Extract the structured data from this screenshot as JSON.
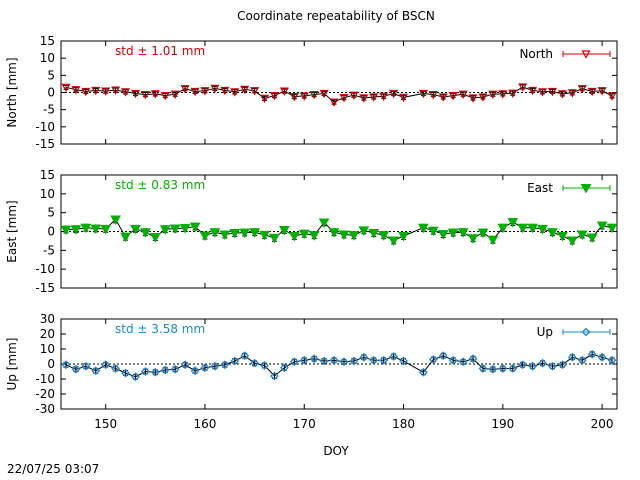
{
  "title": "Coordinate repeatability of BSCN",
  "timestamp": "22/07/25 03:07",
  "chart_data": [
    {
      "type": "line",
      "component": "North",
      "ylabel": "North [mm]",
      "xlim": [
        145.5,
        201.5
      ],
      "ylim": [
        -15,
        15
      ],
      "yticks": [
        15,
        10,
        5,
        0,
        -5,
        -10,
        -15
      ],
      "stat_label": "std ± 1.01 mm",
      "legend": "North",
      "legend_position": "top-right",
      "color": "#cc0000",
      "marker": "triangle-down-open",
      "zero_line": true,
      "error": 0.6,
      "x": [
        146,
        147,
        148,
        149,
        150,
        151,
        152,
        153,
        154,
        155,
        156,
        157,
        158,
        159,
        160,
        161,
        162,
        163,
        164,
        165,
        166,
        167,
        168,
        169,
        170,
        171,
        172,
        173,
        174,
        175,
        176,
        177,
        178,
        179,
        180,
        182,
        183,
        184,
        185,
        186,
        187,
        188,
        189,
        190,
        191,
        192,
        193,
        194,
        195,
        196,
        197,
        198,
        199,
        200,
        201
      ],
      "values": [
        1.5,
        0.8,
        0.3,
        0.6,
        0.4,
        0.7,
        0.2,
        -0.3,
        -0.6,
        -0.4,
        -0.9,
        -0.5,
        1.1,
        0.3,
        0.5,
        1.2,
        0.6,
        0.2,
        0.9,
        0.5,
        -1.7,
        -0.9,
        0.4,
        -1.2,
        -1.0,
        -0.6,
        -0.3,
        -2.8,
        -1.5,
        -0.8,
        -1.6,
        -1.3,
        -1.1,
        -0.3,
        -1.4,
        -0.3,
        -0.6,
        -1.3,
        -0.9,
        -0.5,
        -1.6,
        -1.3,
        -0.5,
        -0.4,
        -0.2,
        1.6,
        0.6,
        0.2,
        0.3,
        -0.4,
        -0.1,
        1.1,
        0.3,
        0.5,
        -1.0
      ]
    },
    {
      "type": "line",
      "component": "East",
      "ylabel": "East [mm]",
      "xlim": [
        145.5,
        201.5
      ],
      "ylim": [
        -15,
        15
      ],
      "yticks": [
        15,
        10,
        5,
        0,
        -5,
        -10,
        -15
      ],
      "stat_label": "std ± 0.83 mm",
      "legend": "East",
      "legend_position": "top-right",
      "color": "#00b000",
      "marker": "triangle-down-filled",
      "zero_line": true,
      "error": 0.9,
      "x": [
        146,
        147,
        148,
        149,
        150,
        151,
        152,
        153,
        154,
        155,
        156,
        157,
        158,
        159,
        160,
        161,
        162,
        163,
        164,
        165,
        166,
        167,
        168,
        169,
        170,
        171,
        172,
        173,
        174,
        175,
        176,
        177,
        178,
        179,
        180,
        182,
        183,
        184,
        185,
        186,
        187,
        188,
        189,
        190,
        191,
        192,
        193,
        194,
        195,
        196,
        197,
        198,
        199,
        200,
        201
      ],
      "values": [
        0.5,
        0.6,
        1.0,
        0.8,
        0.7,
        3.2,
        -1.4,
        0.7,
        -0.2,
        -1.5,
        0.6,
        0.8,
        0.9,
        1.3,
        -1.1,
        -0.2,
        -0.8,
        -0.4,
        -0.3,
        -0.2,
        -0.9,
        -1.7,
        0.4,
        -1.2,
        -0.6,
        -1.0,
        2.4,
        -0.2,
        -0.8,
        -1.0,
        0.3,
        -0.4,
        -1.0,
        -2.4,
        -1.2,
        1.0,
        0.2,
        -0.7,
        -0.3,
        -0.2,
        -1.8,
        -0.3,
        -2.2,
        1.0,
        2.5,
        1.0,
        1.0,
        0.7,
        -0.2,
        -1.2,
        -2.4,
        -0.8,
        -1.6,
        1.6,
        1.0
      ]
    },
    {
      "type": "line",
      "component": "Up",
      "ylabel": "Up [mm]",
      "xlim": [
        145.5,
        201.5
      ],
      "ylim": [
        -30,
        30
      ],
      "yticks": [
        30,
        20,
        10,
        0,
        -10,
        -20,
        -30
      ],
      "stat_label": "std ± 3.58 mm",
      "legend": "Up",
      "legend_position": "top-right",
      "color": "#1e88d6",
      "marker": "diamond-open",
      "zero_line": true,
      "error": 1.6,
      "x": [
        146,
        147,
        148,
        149,
        150,
        151,
        152,
        153,
        154,
        155,
        156,
        157,
        158,
        159,
        160,
        161,
        162,
        163,
        164,
        165,
        166,
        167,
        168,
        169,
        170,
        171,
        172,
        173,
        174,
        175,
        176,
        177,
        178,
        179,
        180,
        182,
        183,
        184,
        185,
        186,
        187,
        188,
        189,
        190,
        191,
        192,
        193,
        194,
        195,
        196,
        197,
        198,
        199,
        200,
        201
      ],
      "values": [
        -0.5,
        -3.5,
        -1.5,
        -4.5,
        -0.5,
        -3.0,
        -6.0,
        -8.5,
        -5.0,
        -5.5,
        -4.0,
        -3.5,
        -0.5,
        -4.5,
        -2.5,
        -1.5,
        -0.5,
        2.0,
        5.5,
        0.5,
        -1.0,
        -8.0,
        -2.5,
        1.5,
        2.5,
        3.5,
        2.0,
        2.5,
        1.5,
        2.0,
        4.5,
        2.5,
        2.5,
        5.0,
        2.0,
        -5.5,
        3.0,
        5.5,
        2.5,
        1.5,
        3.5,
        -3.0,
        -3.5,
        -3.0,
        -3.0,
        -0.5,
        -1.5,
        0.5,
        -1.5,
        -0.5,
        4.5,
        2.5,
        6.5,
        4.5,
        2.5
      ]
    }
  ],
  "x_axis": {
    "label": "DOY",
    "ticks": [
      150,
      160,
      170,
      180,
      190,
      200
    ]
  }
}
